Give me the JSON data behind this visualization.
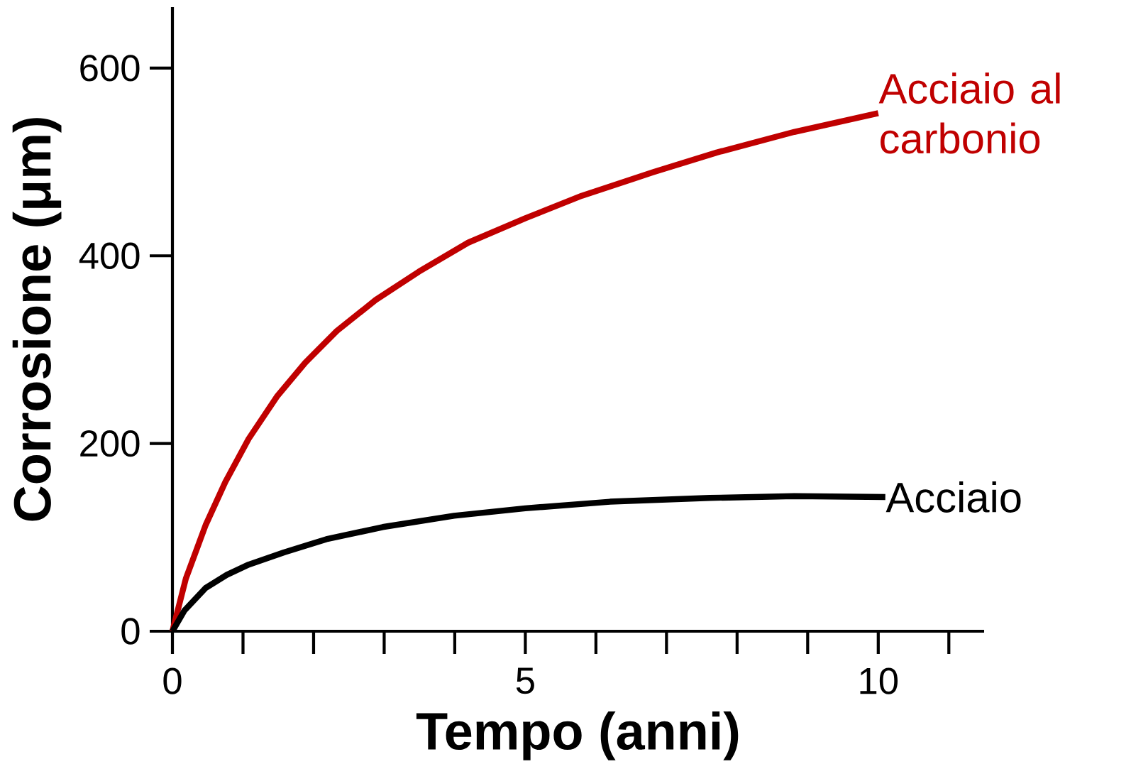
{
  "chart_data": {
    "type": "line",
    "xlabel": "Tempo (anni)",
    "ylabel": "Corrosione (μm)",
    "xlim": [
      0,
      11.5
    ],
    "ylim": [
      0,
      665
    ],
    "xticks": [
      0,
      5,
      10
    ],
    "yticks": [
      0,
      200,
      400,
      600
    ],
    "grid": false,
    "marker": "none",
    "line_style": "solid",
    "series": [
      {
        "name": "Acciaio al carbonio",
        "color": "#c00000",
        "x": [
          0,
          0.19,
          0.47,
          0.75,
          1.08,
          1.48,
          1.88,
          2.33,
          2.88,
          3.49,
          4.19,
          5.0,
          5.8,
          6.81,
          7.71,
          8.81,
          10
        ],
        "values": [
          0,
          56,
          113,
          159,
          205,
          250,
          286,
          320,
          353,
          383,
          414,
          440,
          464,
          489,
          510,
          532,
          552
        ]
      },
      {
        "name": "Acciaio",
        "color": "#000000",
        "x": [
          0,
          0.17,
          0.47,
          0.77,
          1.08,
          1.58,
          2.18,
          2.98,
          3.99,
          5.0,
          6.2,
          7.61,
          8.81,
          10.1
        ],
        "values": [
          0,
          22,
          46,
          60,
          71,
          84,
          98,
          111,
          123,
          131,
          138,
          142,
          144,
          143
        ]
      }
    ]
  }
}
